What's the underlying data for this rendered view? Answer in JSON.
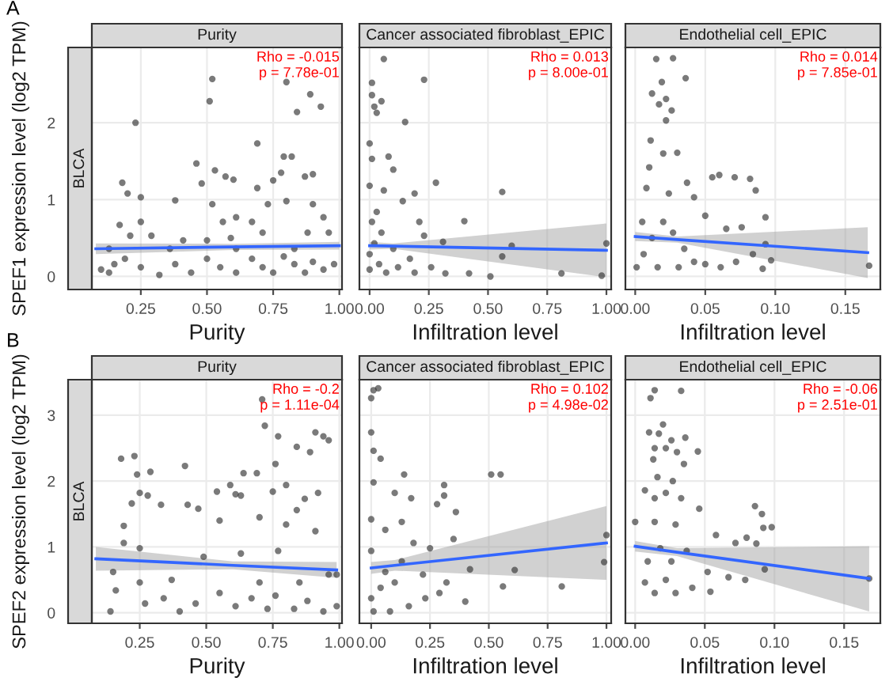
{
  "chart_data": [
    {
      "type": "scatter",
      "title": "Purity",
      "xlabel": "Purity",
      "ylabel": "SPEF1 expression level (log2 TPM)",
      "annotations": [
        "A",
        "BLCA",
        "Rho = -0.015",
        "p = 7.78e-01"
      ],
      "xlim": [
        0.065,
        1.01
      ],
      "ylim": [
        -0.17,
        2.98
      ],
      "xticks": [
        {
          "value": 0.25,
          "label": "0.25"
        },
        {
          "value": 0.5,
          "label": "0.50"
        },
        {
          "value": 0.75,
          "label": "0.75"
        },
        {
          "value": 1.0,
          "label": "1.00"
        }
      ],
      "yticks": [
        0,
        1,
        2
      ],
      "grid": true,
      "series": [
        {
          "marker": "circle",
          "color": "#333333",
          "x": [
            0.23,
            0.52,
            0.51,
            0.8,
            0.89,
            0.93,
            0.84,
            0.69,
            0.79,
            0.82,
            0.18,
            0.2,
            0.25,
            0.38,
            0.46,
            0.53,
            0.57,
            0.6,
            0.48,
            0.52,
            0.69,
            0.75,
            0.78,
            0.87,
            0.9,
            0.8,
            0.9,
            0.94,
            0.73,
            0.67,
            0.56,
            0.61,
            0.25,
            0.17,
            0.21,
            0.29,
            0.41,
            0.5,
            0.59,
            0.71,
            0.88,
            0.96,
            0.13,
            0.19,
            0.25,
            0.13,
            0.32,
            0.38,
            0.44,
            0.5,
            0.55,
            0.61,
            0.67,
            0.71,
            0.75,
            0.79,
            0.83,
            0.87,
            0.9,
            0.94,
            0.98,
            0.36,
            0.61,
            0.83,
            0.15,
            0.1
          ],
          "values": [
            2.0,
            2.57,
            2.28,
            2.53,
            2.37,
            2.21,
            2.14,
            1.73,
            1.56,
            1.56,
            1.22,
            1.08,
            1.03,
            0.99,
            1.47,
            1.38,
            1.3,
            1.26,
            1.21,
            0.94,
            1.15,
            1.25,
            1.35,
            1.3,
            1.33,
            0.98,
            0.94,
            0.77,
            0.94,
            0.71,
            0.71,
            0.77,
            0.71,
            0.67,
            0.53,
            0.53,
            0.47,
            0.47,
            0.5,
            0.57,
            0.57,
            0.57,
            0.36,
            0.23,
            0.12,
            0.05,
            0.02,
            0.16,
            0.05,
            0.23,
            0.12,
            0.05,
            0.23,
            0.12,
            0.05,
            0.26,
            0.16,
            0.05,
            0.19,
            0.09,
            0.16,
            0.36,
            0.36,
            0.36,
            0.16,
            0.09
          ]
        },
        {
          "type": "line",
          "color": "#3366ff",
          "x": [
            0.08,
            0.6,
            1.0
          ],
          "values": [
            0.36,
            0.385,
            0.4
          ],
          "lower": [
            0.29,
            0.345,
            0.35
          ],
          "upper": [
            0.43,
            0.425,
            0.45
          ]
        }
      ]
    },
    {
      "type": "scatter",
      "title": "Cancer associated fibroblast_EPIC",
      "xlabel": "Infiltration level",
      "annotations": [
        "Rho = 0.013",
        "p = 8.00e-01"
      ],
      "xlim": [
        -0.043,
        1.02
      ],
      "ylim": [
        -0.17,
        2.98
      ],
      "xticks": [
        {
          "value": 0.0,
          "label": "0.00"
        },
        {
          "value": 0.25,
          "label": "0.25"
        },
        {
          "value": 0.5,
          "label": "0.50"
        },
        {
          "value": 0.75,
          "label": "0.75"
        },
        {
          "value": 1.0,
          "label": "1.00"
        }
      ],
      "yticks": [
        0,
        1,
        2
      ],
      "tick_labels": "x",
      "grid": true,
      "series": [
        {
          "marker": "circle",
          "color": "#333333",
          "x": [
            0.06,
            0.23,
            0.01,
            0.01,
            0.05,
            0.02,
            0.03,
            0.15,
            0.0,
            0.08,
            0.01,
            0.1,
            0.28,
            0.56,
            0.19,
            0.14,
            0.4,
            0.03,
            0.21,
            0.31,
            0.23,
            0.6,
            0.56,
            1.0,
            0.81,
            0.98,
            0.51,
            0.42,
            0.32,
            0.26,
            0.17,
            0.1,
            0.05,
            0.01,
            0.0,
            0.0,
            0.04,
            0.07,
            0.12,
            0.19,
            0.02,
            0.0,
            0.06
          ],
          "values": [
            2.83,
            2.56,
            2.52,
            2.36,
            2.28,
            2.21,
            2.13,
            2.01,
            1.73,
            1.56,
            1.53,
            1.39,
            1.22,
            1.1,
            1.08,
            0.98,
            0.72,
            0.84,
            0.71,
            0.45,
            0.53,
            0.4,
            0.26,
            0.43,
            0.04,
            0.01,
            0.0,
            0.04,
            0.04,
            0.12,
            0.23,
            0.36,
            0.57,
            0.71,
            0.29,
            0.09,
            0.16,
            0.05,
            0.12,
            0.05,
            0.43,
            1.18,
            1.12
          ]
        },
        {
          "type": "line",
          "color": "#3366ff",
          "x": [
            0.0,
            0.1,
            1.0
          ],
          "values": [
            0.4,
            0.395,
            0.34
          ],
          "lower": [
            0.35,
            0.36,
            -0.01
          ],
          "upper": [
            0.45,
            0.43,
            0.69
          ]
        }
      ]
    },
    {
      "type": "scatter",
      "title": "Endothelial cell_EPIC",
      "xlabel": "Infiltration level",
      "annotations": [
        "Rho = 0.014",
        "p = 7.85e-01"
      ],
      "xlim": [
        -0.007,
        0.175
      ],
      "ylim": [
        -0.17,
        2.98
      ],
      "xticks": [
        {
          "value": 0.0,
          "label": "0.00"
        },
        {
          "value": 0.05,
          "label": "0.05"
        },
        {
          "value": 0.1,
          "label": "0.10"
        },
        {
          "value": 0.15,
          "label": "0.15"
        }
      ],
      "yticks": [
        0,
        1,
        2
      ],
      "tick_labels": "x",
      "grid": true,
      "series": [
        {
          "marker": "circle",
          "color": "#333333",
          "x": [
            0.015,
            0.027,
            0.019,
            0.036,
            0.012,
            0.022,
            0.017,
            0.026,
            0.022,
            0.011,
            0.02,
            0.03,
            0.01,
            0.055,
            0.06,
            0.071,
            0.082,
            0.086,
            0.037,
            0.042,
            0.008,
            0.024,
            0.05,
            0.065,
            0.076,
            0.093,
            0.093,
            0.097,
            0.091,
            0.167,
            0.084,
            0.072,
            0.061,
            0.05,
            0.001,
            0.006,
            0.012,
            0.02,
            0.027,
            0.035,
            0.042,
            0.016,
            0.031,
            0.005
          ],
          "values": [
            2.83,
            2.84,
            2.53,
            2.58,
            2.38,
            2.31,
            2.24,
            2.16,
            2.03,
            1.77,
            1.6,
            1.61,
            1.42,
            1.29,
            1.32,
            1.29,
            1.27,
            1.12,
            1.22,
            1.03,
            1.15,
            1.08,
            0.79,
            0.62,
            0.64,
            0.77,
            0.42,
            0.21,
            0.1,
            0.14,
            0.29,
            0.19,
            0.12,
            0.16,
            0.12,
            0.29,
            0.5,
            0.71,
            0.57,
            0.36,
            0.19,
            0.12,
            0.12,
            0.71
          ]
        },
        {
          "type": "line",
          "color": "#3366ff",
          "x": [
            0.0,
            0.03,
            0.166
          ],
          "values": [
            0.52,
            0.48,
            0.31
          ],
          "lower": [
            0.46,
            0.44,
            -0.02
          ],
          "upper": [
            0.58,
            0.52,
            0.64
          ]
        }
      ]
    },
    {
      "type": "scatter",
      "title": "Purity",
      "xlabel": "Purity",
      "ylabel": "SPEF2 expression level (log2 TPM)",
      "annotations": [
        "B",
        "BLCA",
        "Rho = -0.2",
        "p = 1.11e-04"
      ],
      "xlim": [
        0.07,
        1.01
      ],
      "ylim": [
        -0.16,
        3.54
      ],
      "xticks": [
        {
          "value": 0.25,
          "label": "0.25"
        },
        {
          "value": 0.5,
          "label": "0.50"
        },
        {
          "value": 0.75,
          "label": "0.75"
        },
        {
          "value": 1.0,
          "label": "1.00"
        }
      ],
      "yticks": [
        0,
        1,
        2,
        3
      ],
      "grid": true,
      "series": [
        {
          "marker": "circle",
          "color": "#333333",
          "x": [
            0.71,
            0.72,
            0.77,
            0.84,
            0.91,
            0.94,
            0.96,
            0.89,
            0.76,
            0.8,
            0.69,
            0.64,
            0.18,
            0.23,
            0.24,
            0.29,
            0.42,
            0.59,
            0.61,
            0.54,
            0.63,
            0.75,
            0.87,
            0.92,
            0.84,
            0.28,
            0.25,
            0.33,
            0.43,
            0.47,
            0.22,
            0.19,
            0.55,
            0.7,
            0.8,
            0.91,
            0.77,
            0.63,
            0.49,
            0.19,
            0.25,
            0.15,
            0.37,
            0.25,
            0.16,
            0.34,
            0.4,
            0.46,
            0.55,
            0.61,
            0.67,
            0.73,
            0.76,
            0.83,
            0.88,
            0.94,
            0.99,
            0.7,
            0.85,
            0.96,
            0.14,
            0.27,
            0.99
          ],
          "values": [
            3.24,
            2.84,
            2.68,
            2.52,
            2.74,
            2.68,
            2.62,
            2.44,
            2.26,
            1.94,
            2.12,
            2.12,
            2.34,
            2.38,
            2.1,
            2.14,
            2.23,
            1.94,
            1.8,
            1.84,
            1.78,
            1.84,
            1.73,
            1.82,
            1.56,
            1.78,
            1.82,
            1.64,
            1.64,
            1.58,
            1.66,
            1.32,
            1.4,
            1.45,
            1.34,
            1.24,
            0.94,
            0.9,
            0.85,
            1.06,
            0.98,
            0.62,
            0.5,
            0.46,
            0.34,
            0.22,
            0.02,
            0.14,
            0.3,
            0.1,
            0.22,
            0.06,
            0.26,
            0.06,
            0.18,
            0.02,
            0.1,
            0.46,
            0.46,
            0.58,
            0.02,
            0.14,
            0.58
          ]
        },
        {
          "type": "line",
          "color": "#3366ff",
          "x": [
            0.085,
            0.6,
            0.99
          ],
          "values": [
            0.82,
            0.72,
            0.65
          ],
          "lower": [
            0.64,
            0.66,
            0.53
          ],
          "upper": [
            1.0,
            0.78,
            0.77
          ]
        }
      ]
    },
    {
      "type": "scatter",
      "title": "Cancer associated fibroblast_EPIC",
      "xlabel": "Infiltration level",
      "annotations": [
        "Rho = 0.102",
        "p = 4.98e-02"
      ],
      "xlim": [
        -0.05,
        1.02
      ],
      "ylim": [
        -0.16,
        3.54
      ],
      "xticks": [
        {
          "value": 0.0,
          "label": "0.00"
        },
        {
          "value": 0.25,
          "label": "0.25"
        },
        {
          "value": 0.5,
          "label": "0.50"
        },
        {
          "value": 0.75,
          "label": "0.75"
        },
        {
          "value": 1.0,
          "label": "1.00"
        }
      ],
      "yticks": [
        0,
        1,
        2,
        3
      ],
      "tick_labels": "x",
      "grid": true,
      "series": [
        {
          "marker": "circle",
          "color": "#333333",
          "x": [
            0.01,
            0.03,
            0.0,
            0.0,
            0.01,
            0.04,
            0.51,
            0.55,
            0.14,
            0.31,
            0.28,
            0.31,
            0.36,
            0.1,
            0.17,
            1.0,
            0.99,
            0.35,
            0.25,
            0.18,
            0.42,
            0.61,
            0.56,
            0.81,
            0.4,
            0.32,
            0.23,
            0.16,
            0.08,
            0.01,
            0.0,
            0.04,
            0.1,
            0.06,
            0.0,
            0.0,
            0.06,
            0.13,
            0.01,
            0.13,
            0.22,
            0.29
          ],
          "values": [
            3.38,
            3.41,
            3.26,
            2.74,
            2.46,
            2.34,
            2.1,
            2.1,
            2.1,
            1.94,
            1.65,
            1.78,
            1.53,
            1.82,
            1.74,
            1.18,
            0.77,
            1.12,
            0.98,
            1.06,
            0.66,
            0.65,
            0.4,
            0.4,
            0.17,
            0.46,
            0.22,
            0.1,
            0.02,
            0.02,
            0.22,
            0.38,
            0.46,
            0.62,
            0.94,
            1.42,
            1.26,
            1.38,
            1.98,
            0.78,
            0.58,
            0.3
          ]
        },
        {
          "type": "line",
          "color": "#3366ff",
          "x": [
            0.0,
            0.1,
            1.0
          ],
          "values": [
            0.68,
            0.72,
            1.06
          ],
          "lower": [
            0.59,
            0.64,
            0.5
          ],
          "upper": [
            0.77,
            0.8,
            1.62
          ]
        }
      ]
    },
    {
      "type": "scatter",
      "title": "Endothelial cell_EPIC",
      "xlabel": "Infiltration level",
      "annotations": [
        "Rho = -0.06",
        "p = 2.51e-01"
      ],
      "xlim": [
        -0.007,
        0.176
      ],
      "ylim": [
        -0.16,
        3.54
      ],
      "xticks": [
        {
          "value": 0.0,
          "label": "0.00"
        },
        {
          "value": 0.05,
          "label": "0.05"
        },
        {
          "value": 0.1,
          "label": "0.10"
        },
        {
          "value": 0.15,
          "label": "0.15"
        }
      ],
      "yticks": [
        0,
        1,
        2,
        3
      ],
      "tick_labels": "x",
      "grid": true,
      "series": [
        {
          "marker": "circle",
          "color": "#333333",
          "x": [
            0.014,
            0.011,
            0.033,
            0.02,
            0.01,
            0.017,
            0.026,
            0.036,
            0.014,
            0.022,
            0.03,
            0.045,
            0.013,
            0.035,
            0.016,
            0.027,
            0.007,
            0.014,
            0.022,
            0.033,
            0.046,
            0.086,
            0.091,
            0.098,
            0.092,
            0.0,
            0.014,
            0.029,
            0.058,
            0.08,
            0.072,
            0.087,
            0.093,
            0.079,
            0.067,
            0.168,
            0.052,
            0.041,
            0.029,
            0.014,
            0.007,
            0.022,
            0.054,
            0.009,
            0.026,
            0.018,
            0.037
          ],
          "values": [
            3.38,
            3.26,
            3.37,
            2.86,
            2.74,
            2.72,
            2.62,
            2.66,
            2.5,
            2.5,
            2.44,
            2.45,
            2.33,
            2.26,
            2.06,
            2.0,
            1.86,
            1.74,
            1.82,
            1.74,
            1.58,
            1.62,
            1.5,
            1.3,
            1.29,
            1.38,
            1.38,
            1.34,
            1.18,
            1.14,
            1.06,
            1.05,
            0.66,
            0.5,
            0.54,
            0.52,
            0.62,
            0.38,
            0.3,
            0.3,
            0.46,
            0.5,
            0.32,
            0.78,
            0.78,
            0.98,
            0.94
          ]
        },
        {
          "type": "line",
          "color": "#3366ff",
          "x": [
            0.0,
            0.03,
            0.168
          ],
          "values": [
            1.01,
            0.92,
            0.52
          ],
          "lower": [
            0.93,
            0.86,
            0.02
          ],
          "upper": [
            1.09,
            0.98,
            1.01
          ]
        }
      ]
    }
  ]
}
